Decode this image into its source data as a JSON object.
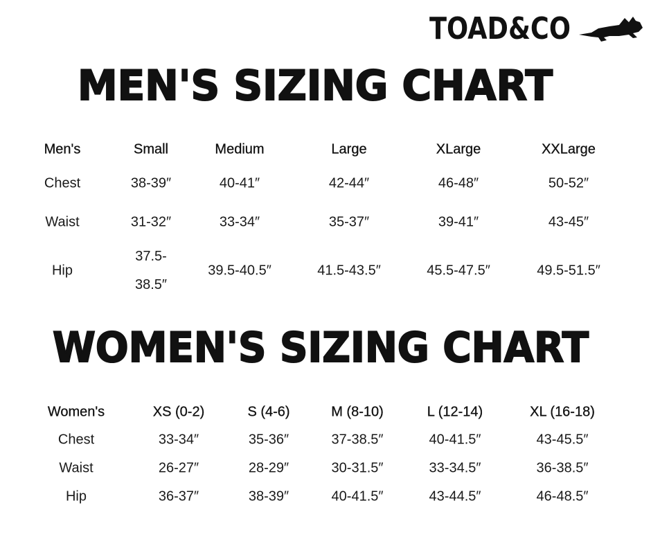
{
  "brand": {
    "logo_text": "TOAD&CO",
    "mark": "horned-toad-icon"
  },
  "mens": {
    "title": "MEN'S SIZING CHART",
    "headers": [
      "Men's",
      "Small",
      "Medium",
      "Large",
      "XLarge",
      "XXLarge"
    ],
    "rows": [
      {
        "label": "Chest",
        "values": [
          "38-39″",
          "40-41″",
          "42-44″",
          "46-48″",
          "50-52″"
        ]
      },
      {
        "label": "Waist",
        "values": [
          "31-32″",
          "33-34″",
          "35-37″",
          "39-41″",
          "43-45″"
        ]
      },
      {
        "label": "Hip",
        "values": [
          "37.5-\n38.5″",
          "39.5-40.5″",
          "41.5-43.5″",
          "45.5-47.5″",
          "49.5-51.5″"
        ]
      }
    ]
  },
  "womens": {
    "title": "WOMEN'S SIZING CHART",
    "headers": [
      "Women's",
      "XS (0-2)",
      "S (4-6)",
      "M (8-10)",
      "L (12-14)",
      "XL (16-18)"
    ],
    "rows": [
      {
        "label": "Chest",
        "values": [
          "33-34″",
          "35-36″",
          "37-38.5″",
          "40-41.5″",
          "43-45.5″"
        ]
      },
      {
        "label": "Waist",
        "values": [
          "26-27″",
          "28-29″",
          "30-31.5″",
          "33-34.5″",
          "36-38.5″"
        ]
      },
      {
        "label": "Hip",
        "values": [
          "36-37″",
          "38-39″",
          "40-41.5″",
          "43-44.5″",
          "46-48.5″"
        ]
      }
    ]
  }
}
